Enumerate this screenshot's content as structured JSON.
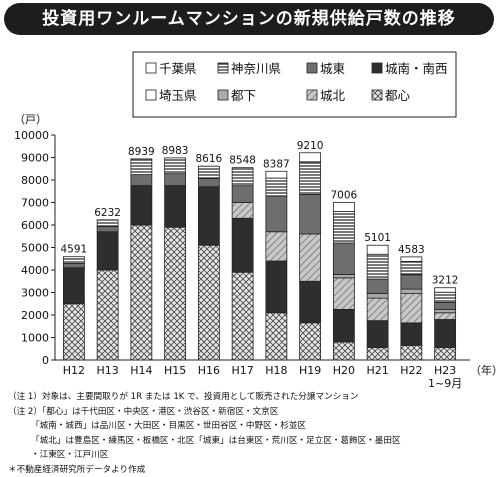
{
  "title": "投資用ワンルームマンションの新規供給戸数の推移",
  "chart_data": {
    "type": "bar",
    "stacked": true,
    "unit_label": "（戸）",
    "x_unit_label": "（年）",
    "ylim": [
      0,
      10000
    ],
    "yticks": [
      0,
      1000,
      2000,
      3000,
      4000,
      5000,
      6000,
      7000,
      8000,
      9000,
      10000
    ],
    "grid": false,
    "legend_position": "top",
    "categories": [
      "H12",
      "H13",
      "H14",
      "H15",
      "H16",
      "H17",
      "H18",
      "H19",
      "H20",
      "H21",
      "H22",
      "H23\n1~9月"
    ],
    "totals": [
      4591,
      6232,
      8939,
      8983,
      8616,
      8548,
      8387,
      9210,
      7006,
      5101,
      4583,
      3212
    ],
    "series": [
      {
        "name": "都心",
        "values": [
          2500,
          4000,
          6000,
          5900,
          5100,
          3900,
          2100,
          1650,
          800,
          550,
          650,
          550
        ]
      },
      {
        "name": "城南・南西",
        "values": [
          1600,
          1700,
          1750,
          1850,
          2600,
          2400,
          2300,
          1850,
          1450,
          1200,
          1000,
          1250
        ]
      },
      {
        "name": "城北",
        "values": [
          0,
          0,
          0,
          0,
          0,
          700,
          1300,
          2100,
          1400,
          1000,
          1300,
          300
        ]
      },
      {
        "name": "都下",
        "values": [
          0,
          0,
          0,
          0,
          0,
          0,
          0,
          0,
          150,
          200,
          200,
          150
        ]
      },
      {
        "name": "城東",
        "values": [
          191,
          232,
          489,
          533,
          366,
          748,
          1587,
          1760,
          1400,
          650,
          633,
          312
        ]
      },
      {
        "name": "埼玉県",
        "values": [
          0,
          0,
          0,
          0,
          0,
          0,
          0,
          0,
          0,
          0,
          0,
          0
        ]
      },
      {
        "name": "神奈川県",
        "values": [
          300,
          300,
          700,
          700,
          550,
          800,
          800,
          1450,
          1400,
          1100,
          600,
          450
        ]
      },
      {
        "name": "千葉県",
        "values": [
          0,
          0,
          0,
          0,
          0,
          0,
          300,
          400,
          406,
          401,
          200,
          200
        ]
      }
    ],
    "legend_order": [
      "千葉県",
      "神奈川県",
      "城東",
      "城南・南西",
      "埼玉県",
      "都下",
      "城北",
      "都心"
    ]
  },
  "notes": [
    "（注 1）対象は、主要間取りが 1R または 1K で、投資用として販売された分譲マンション",
    "（注 2）「都心」は千代田区・中央区・港区・渋谷区・新宿区・文京区",
    "「城南・城西」は品川区・大田区・目黒区・世田谷区・中野区・杉並区",
    "「城北」は豊島区・練馬区・板橋区・北区「城東」は台東区・荒川区・足立区・葛飾区・墨田区",
    "・江東区・江戸川区",
    "＊不動産経済研究所データより作成"
  ]
}
